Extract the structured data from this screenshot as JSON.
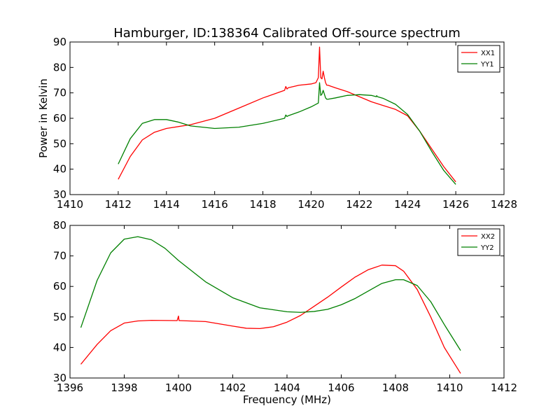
{
  "chart_data": [
    {
      "type": "line",
      "title": "Hamburger, ID:138364 Calibrated Off-source spectrum",
      "xlabel": "",
      "ylabel": "Power in Kelvin",
      "xlim": [
        1410,
        1428
      ],
      "ylim": [
        30,
        90
      ],
      "xticks": [
        1410,
        1412,
        1414,
        1416,
        1418,
        1420,
        1422,
        1424,
        1426,
        1428
      ],
      "yticks": [
        30,
        40,
        50,
        60,
        70,
        80,
        90
      ],
      "grid": false,
      "legend": "top-right",
      "series": [
        {
          "name": "XX1",
          "color": "#ff0000",
          "x": [
            1412,
            1412.5,
            1413,
            1413.5,
            1414,
            1415,
            1416,
            1417,
            1418,
            1418.9,
            1418.95,
            1419.0,
            1419.05,
            1419.5,
            1420,
            1420.2,
            1420.3,
            1420.35,
            1420.4,
            1420.45,
            1420.5,
            1420.55,
            1420.6,
            1420.65,
            1420.7,
            1421,
            1421.5,
            1422,
            1422.5,
            1423,
            1423.5,
            1424,
            1424.5,
            1425,
            1425.5,
            1426
          ],
          "values": [
            36,
            45,
            51.5,
            54.5,
            56,
            57.5,
            60,
            64,
            68,
            71,
            72.5,
            71.5,
            72,
            73,
            73.5,
            74,
            76,
            88,
            76,
            75.5,
            78.5,
            76,
            74,
            73,
            73,
            72,
            70.5,
            68.5,
            66.5,
            65,
            63.5,
            61,
            55,
            48,
            41,
            35
          ]
        },
        {
          "name": "YY1",
          "color": "#008000",
          "x": [
            1412,
            1412.5,
            1413,
            1413.5,
            1414,
            1414.5,
            1415,
            1416,
            1417,
            1418,
            1418.9,
            1418.95,
            1419.0,
            1419.05,
            1419.5,
            1420,
            1420.3,
            1420.35,
            1420.4,
            1420.45,
            1420.5,
            1420.55,
            1420.6,
            1420.65,
            1420.7,
            1421,
            1421.5,
            1422,
            1422.5,
            1422.7,
            1422.72,
            1422.75,
            1423,
            1423.5,
            1424,
            1424.5,
            1425,
            1425.5,
            1426
          ],
          "values": [
            42,
            52,
            58,
            59.5,
            59.5,
            58.5,
            57,
            56,
            56.5,
            58,
            60,
            61.3,
            60.7,
            61,
            62.5,
            64.5,
            66,
            74,
            69,
            69.5,
            71,
            69.5,
            68,
            67.5,
            67.5,
            68,
            69,
            69.3,
            69,
            68.5,
            68.9,
            68.5,
            67.8,
            65.5,
            61.5,
            55,
            47,
            39.5,
            34
          ]
        }
      ]
    },
    {
      "type": "line",
      "title": "",
      "xlabel": "Frequency (MHz)",
      "ylabel": "",
      "xlim": [
        1396,
        1412
      ],
      "ylim": [
        30,
        80
      ],
      "xticks": [
        1396,
        1398,
        1400,
        1402,
        1404,
        1406,
        1408,
        1410,
        1412
      ],
      "yticks": [
        30,
        40,
        50,
        60,
        70,
        80
      ],
      "grid": false,
      "legend": "top-right",
      "series": [
        {
          "name": "XX2",
          "color": "#ff0000",
          "x": [
            1396.4,
            1397,
            1397.5,
            1398,
            1398.5,
            1399,
            1399.95,
            1400.0,
            1400.02,
            1400.05,
            1401,
            1402,
            1402.5,
            1403,
            1403.5,
            1404,
            1404.5,
            1405,
            1405.5,
            1406,
            1406.5,
            1407,
            1407.5,
            1408,
            1408.3,
            1408.8,
            1409.3,
            1409.8,
            1410.4
          ],
          "values": [
            34.5,
            41,
            45.5,
            48,
            48.7,
            48.9,
            48.8,
            50.3,
            48.8,
            48.8,
            48.5,
            47,
            46.3,
            46.2,
            46.8,
            48.3,
            50.5,
            53.5,
            56.5,
            59.8,
            63,
            65.5,
            67,
            66.8,
            65,
            59,
            50,
            40,
            31.5
          ]
        },
        {
          "name": "YY2",
          "color": "#008000",
          "x": [
            1396.4,
            1397,
            1397.5,
            1398,
            1398.5,
            1399,
            1399.5,
            1400,
            1401,
            1402,
            1403,
            1404,
            1404.5,
            1405,
            1405.5,
            1406,
            1406.5,
            1407,
            1407.5,
            1408,
            1408.3,
            1408.8,
            1409.3,
            1409.8,
            1410.4
          ],
          "values": [
            46.5,
            62,
            71,
            75.5,
            76.3,
            75.3,
            72.5,
            68.5,
            61.5,
            56.3,
            53,
            51.7,
            51.5,
            51.8,
            52.5,
            54,
            56,
            58.5,
            61,
            62.2,
            62.2,
            60.3,
            55,
            47.5,
            39
          ]
        }
      ]
    }
  ]
}
